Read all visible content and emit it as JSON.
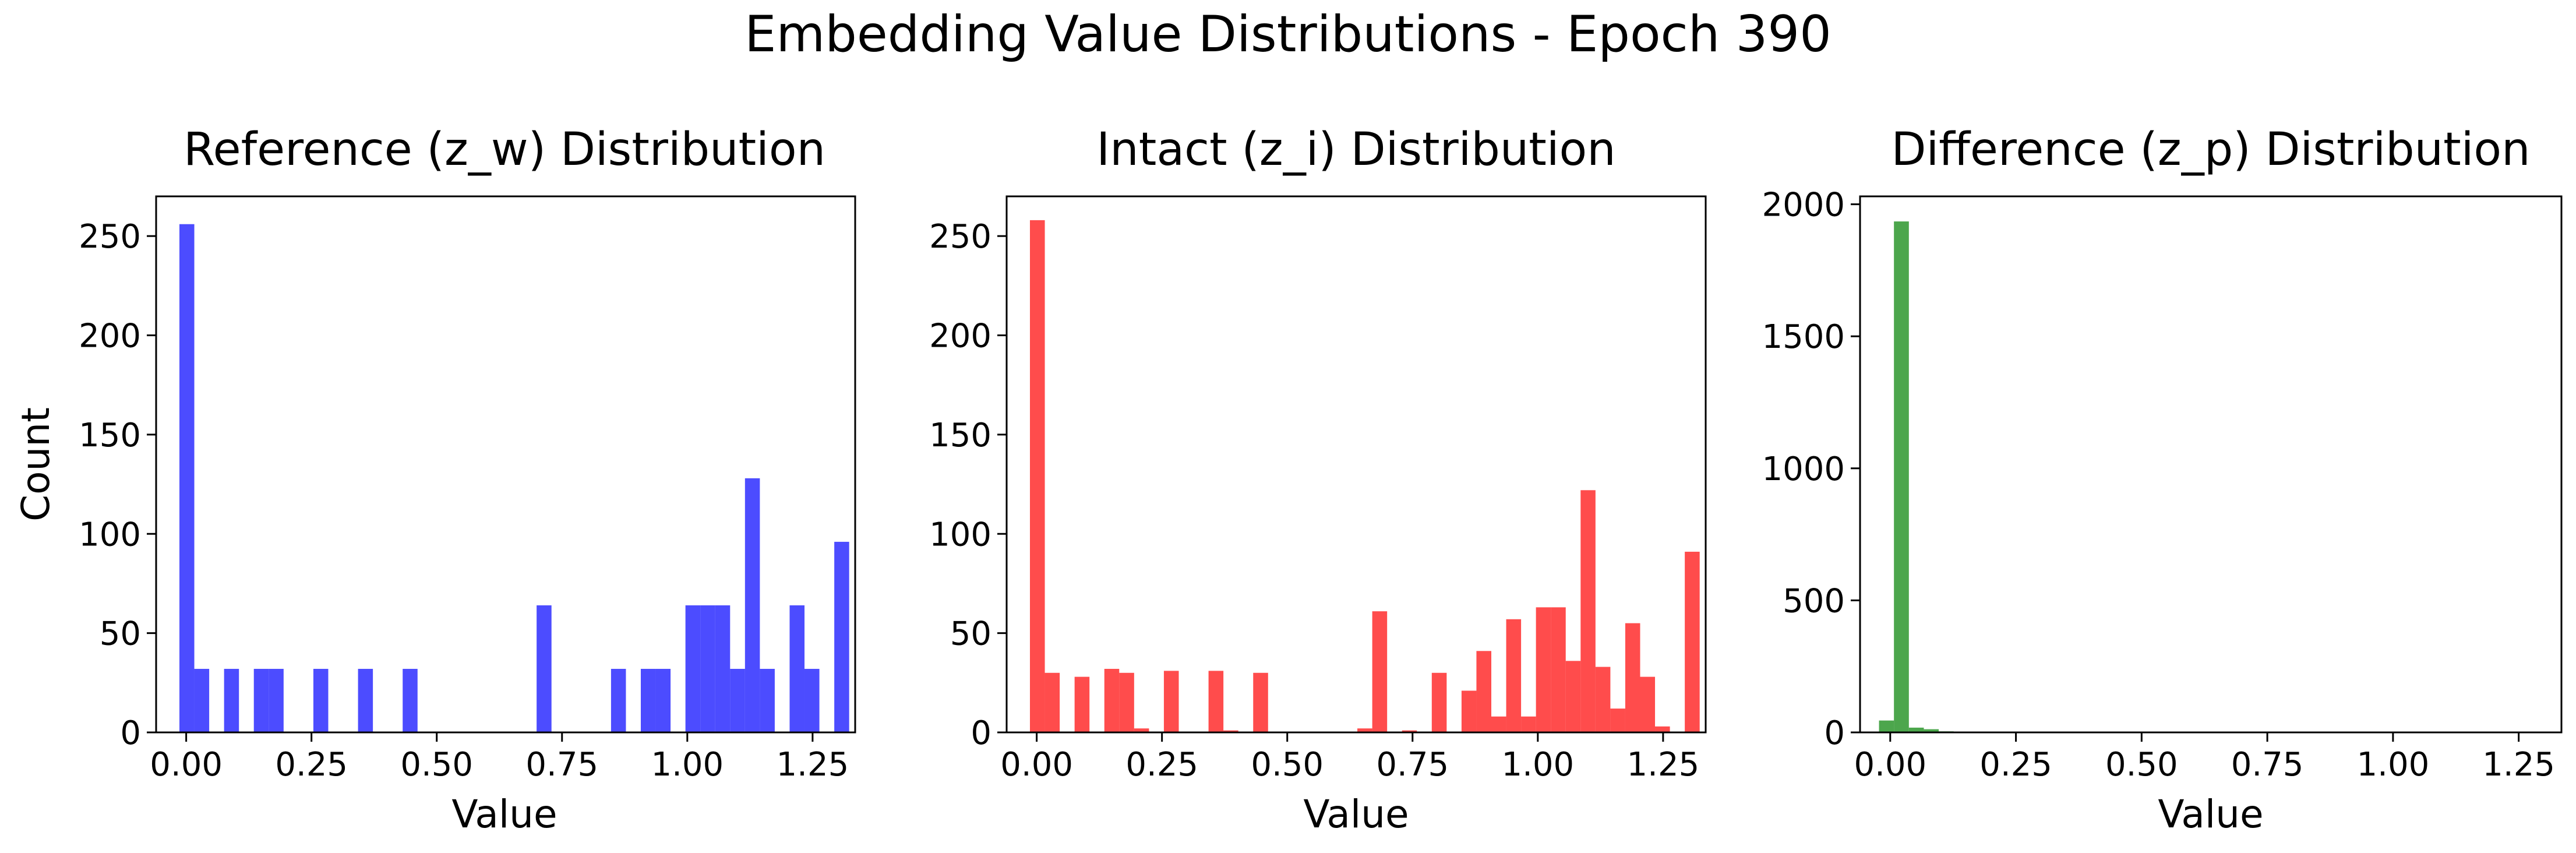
{
  "figure_title": "Embedding Value Distributions - Epoch 390",
  "chart_data": [
    {
      "type": "bar",
      "title": "Reference (z_w) Distribution",
      "xlabel": "Value",
      "ylabel": "Count",
      "color": "#0000ff",
      "bar_opacity": 0.7,
      "xlim": [
        -0.06,
        1.335
      ],
      "ylim": [
        0,
        270
      ],
      "xticks": [
        0.0,
        0.25,
        0.5,
        0.75,
        1.0,
        1.25
      ],
      "xtick_labels": [
        "0.00",
        "0.25",
        "0.50",
        "0.75",
        "1.00",
        "1.25"
      ],
      "yticks": [
        0,
        50,
        100,
        150,
        200,
        250
      ],
      "ytick_labels": [
        "0",
        "50",
        "100",
        "150",
        "200",
        "250"
      ],
      "bin_start": -0.0135,
      "bin_width": 0.0297,
      "counts": [
        256,
        32,
        0,
        32,
        0,
        32,
        32,
        0,
        0,
        32,
        0,
        0,
        32,
        0,
        0,
        32,
        0,
        0,
        0,
        0,
        0,
        0,
        0,
        0,
        64,
        0,
        0,
        0,
        0,
        32,
        0,
        32,
        32,
        0,
        64,
        64,
        64,
        32,
        128,
        32,
        0,
        64,
        32,
        0,
        96
      ]
    },
    {
      "type": "bar",
      "title": "Intact (z_i) Distribution",
      "xlabel": "Value",
      "ylabel": "",
      "color": "#ff0000",
      "bar_opacity": 0.7,
      "xlim": [
        -0.06,
        1.335
      ],
      "ylim": [
        0,
        270
      ],
      "xticks": [
        0.0,
        0.25,
        0.5,
        0.75,
        1.0,
        1.25
      ],
      "xtick_labels": [
        "0.00",
        "0.25",
        "0.50",
        "0.75",
        "1.00",
        "1.25"
      ],
      "yticks": [
        0,
        50,
        100,
        150,
        200,
        250
      ],
      "ytick_labels": [
        "0",
        "50",
        "100",
        "150",
        "200",
        "250"
      ],
      "bin_start": -0.0135,
      "bin_width": 0.0297,
      "counts": [
        258,
        30,
        0,
        28,
        0,
        32,
        30,
        2,
        0,
        31,
        0,
        0,
        31,
        1,
        0,
        30,
        0,
        0,
        0,
        0,
        0,
        0,
        2,
        61,
        0,
        1,
        0,
        30,
        0,
        21,
        41,
        8,
        57,
        8,
        63,
        63,
        36,
        122,
        33,
        12,
        55,
        28,
        3,
        0,
        91
      ]
    },
    {
      "type": "bar",
      "title": "Difference (z_p) Distribution",
      "xlabel": "Value",
      "ylabel": "",
      "color": "#008000",
      "bar_opacity": 0.7,
      "xlim": [
        -0.06,
        1.335
      ],
      "ylim": [
        0,
        2030
      ],
      "xticks": [
        0.0,
        0.25,
        0.5,
        0.75,
        1.0,
        1.25
      ],
      "xtick_labels": [
        "0.00",
        "0.25",
        "0.50",
        "0.75",
        "1.00",
        "1.25"
      ],
      "yticks": [
        0,
        500,
        1000,
        1500,
        2000
      ],
      "ytick_labels": [
        "0",
        "500",
        "1000",
        "1500",
        "2000"
      ],
      "bin_start": -0.0223,
      "bin_width": 0.0297,
      "counts": [
        45,
        1935,
        18,
        12,
        4,
        2,
        1,
        1,
        0,
        1,
        0,
        0,
        1,
        0,
        0,
        0,
        0,
        0,
        0,
        0,
        0,
        0,
        0,
        0,
        0,
        0,
        0,
        0,
        0,
        0,
        0,
        0,
        0,
        0,
        0,
        0,
        0,
        0,
        0,
        0,
        0,
        0,
        0,
        0,
        0
      ]
    }
  ]
}
